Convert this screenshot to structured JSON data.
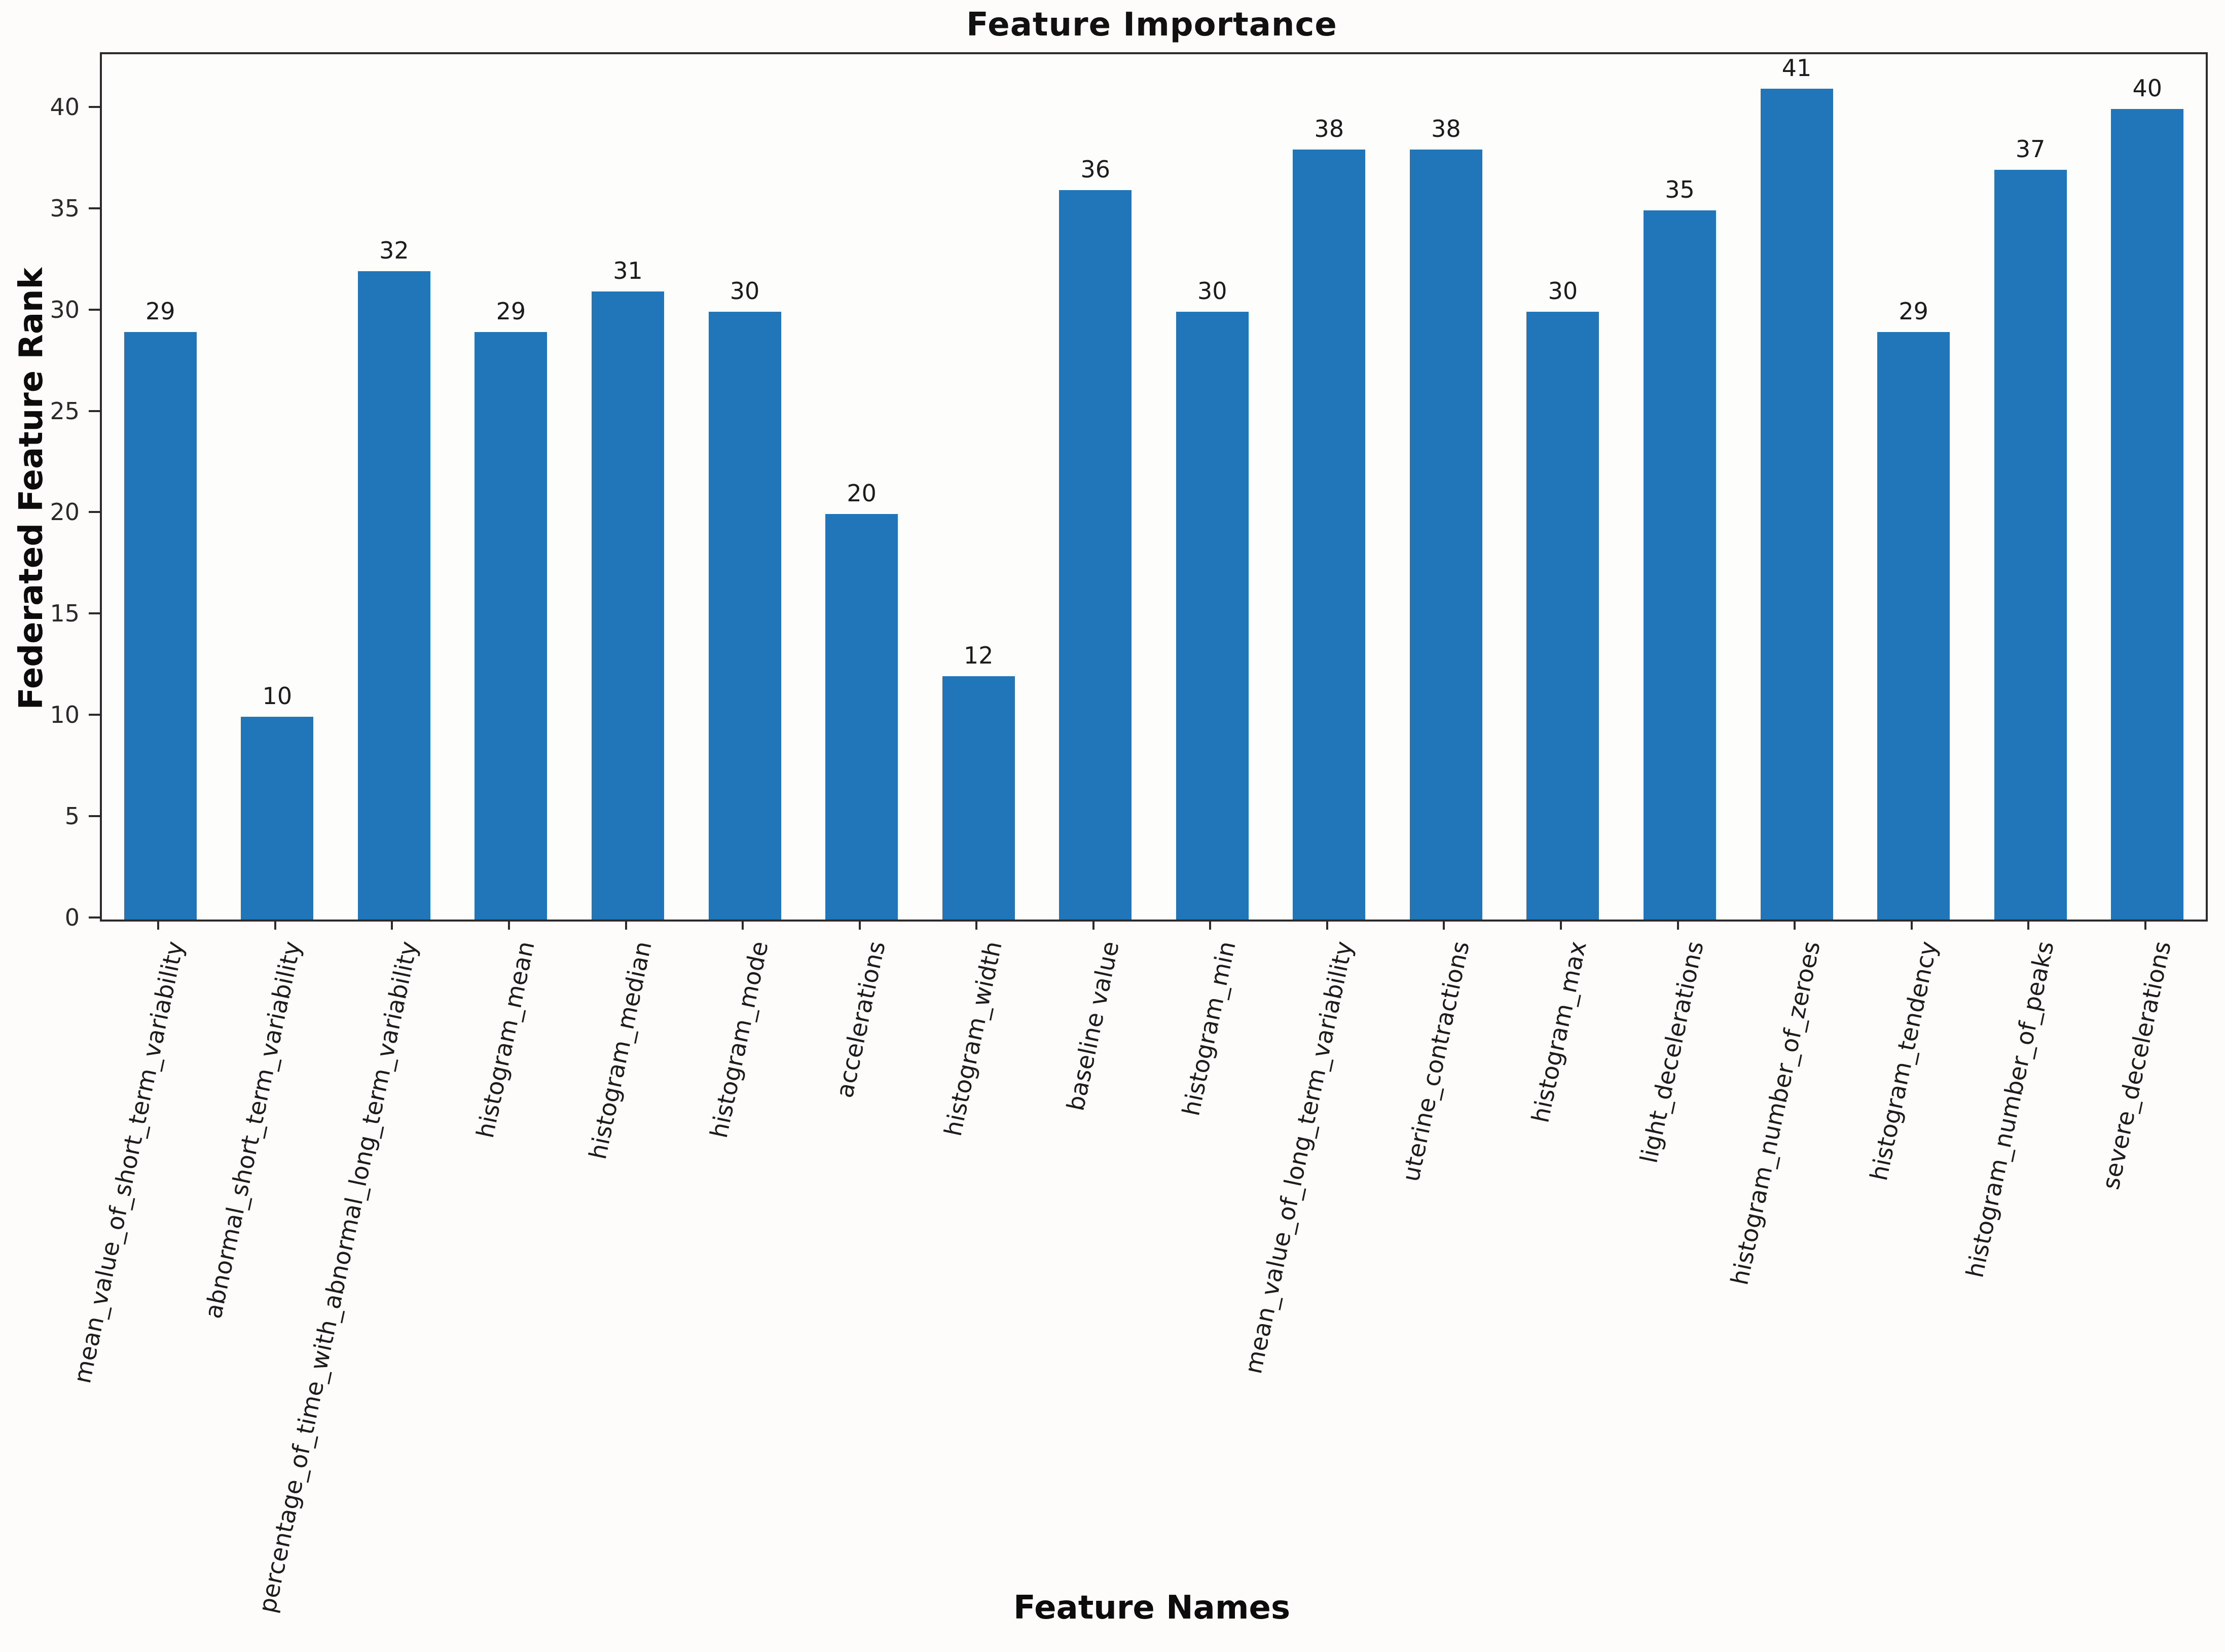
{
  "chart_data": {
    "type": "bar",
    "title": "Feature Importance",
    "xlabel": "Feature Names",
    "ylabel": "Federated Feature Rank",
    "categories": [
      "mean_value_of_short_term_variability",
      "abnormal_short_term_variability",
      "percentage_of_time_with_abnormal_long_term_variability",
      "histogram_mean",
      "histogram_median",
      "histogram_mode",
      "accelerations",
      "histogram_width",
      "baseline value",
      "histogram_min",
      "mean_value_of_long_term_variability",
      "uterine_contractions",
      "histogram_max",
      "light_decelerations",
      "histogram_number_of_zeroes",
      "histogram_tendency",
      "histogram_number_of_peaks",
      "severe_decelerations"
    ],
    "values": [
      29,
      10,
      32,
      29,
      31,
      30,
      20,
      12,
      36,
      30,
      38,
      38,
      30,
      35,
      41,
      29,
      37,
      40
    ],
    "bar_value_labels": [
      "29",
      "10",
      "32",
      "29",
      "31",
      "30",
      "20",
      "12",
      "36",
      "30",
      "38",
      "38",
      "30",
      "35",
      "41",
      "29",
      "37",
      "40"
    ],
    "yticks": [
      0,
      5,
      10,
      15,
      20,
      25,
      30,
      35,
      40
    ],
    "ytick_labels": [
      "0",
      "5",
      "10",
      "15",
      "20",
      "25",
      "30",
      "35",
      "40"
    ],
    "ylim": [
      0,
      42.7
    ],
    "grid": false,
    "legend": null,
    "bar_color": "#2176ba",
    "x_tick_rotation_deg": 78
  }
}
